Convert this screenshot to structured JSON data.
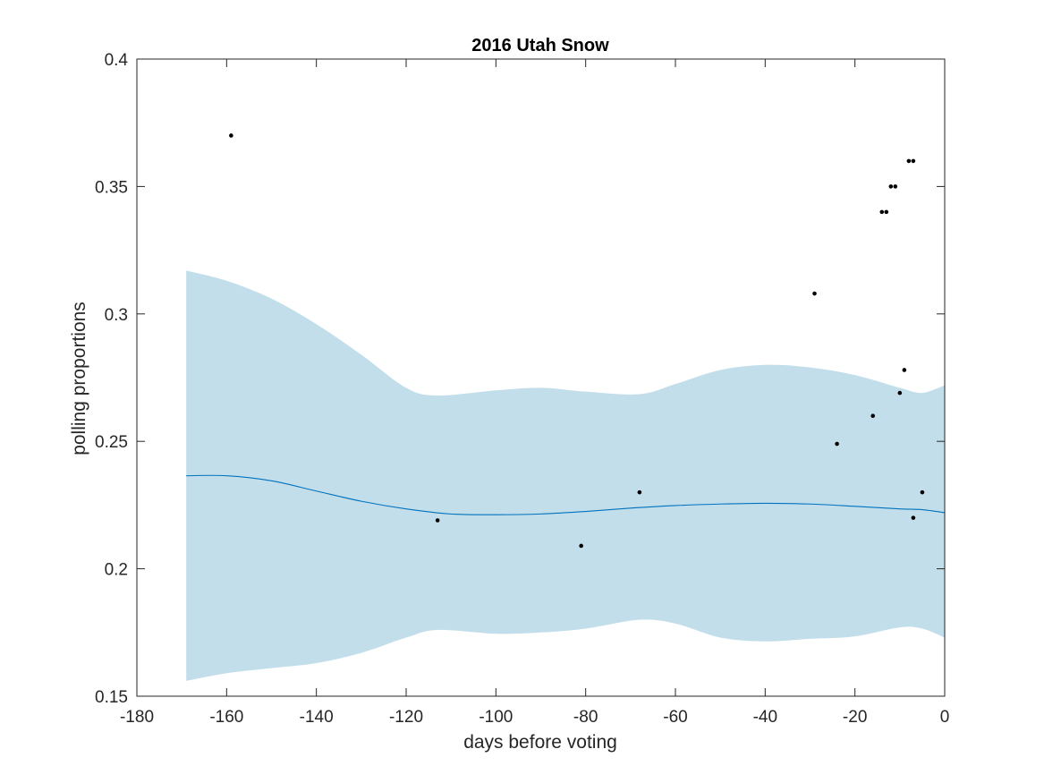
{
  "chart_data": {
    "type": "line",
    "title": "2016 Utah Snow",
    "xlabel": "days before voting",
    "ylabel": "polling proportions",
    "xlim": [
      -180,
      0
    ],
    "ylim": [
      0.15,
      0.4
    ],
    "xticks": [
      -180,
      -160,
      -140,
      -120,
      -100,
      -80,
      -60,
      -40,
      -20,
      0
    ],
    "yticks": [
      0.15,
      0.2,
      0.25,
      0.3,
      0.35,
      0.4
    ],
    "xtick_labels": [
      "-180",
      "-160",
      "-140",
      "-120",
      "-100",
      "-80",
      "-60",
      "-40",
      "-20",
      "0"
    ],
    "ytick_labels": [
      "0.15",
      "0.2",
      "0.25",
      "0.3",
      "0.35",
      "0.4"
    ],
    "grid": false,
    "colors": {
      "band": "#c2deeb",
      "line": "#0072bd",
      "points": "#000000",
      "axes": "#262626"
    },
    "band": {
      "x": [
        -169,
        -160,
        -150,
        -140,
        -130,
        -120,
        -113,
        -100,
        -90,
        -80,
        -68,
        -60,
        -50,
        -40,
        -30,
        -20,
        -10,
        -5,
        0
      ],
      "upper": [
        0.317,
        0.313,
        0.306,
        0.296,
        0.284,
        0.271,
        0.268,
        0.27,
        0.271,
        0.2695,
        0.2685,
        0.2725,
        0.278,
        0.28,
        0.279,
        0.276,
        0.271,
        0.269,
        0.272
      ],
      "lower": [
        0.156,
        0.159,
        0.161,
        0.163,
        0.167,
        0.173,
        0.176,
        0.1745,
        0.175,
        0.1765,
        0.18,
        0.1785,
        0.173,
        0.1715,
        0.1725,
        0.1735,
        0.177,
        0.1765,
        0.173
      ]
    },
    "mean_line": {
      "x": [
        -169,
        -160,
        -150,
        -140,
        -130,
        -120,
        -110,
        -100,
        -90,
        -80,
        -70,
        -60,
        -50,
        -40,
        -30,
        -20,
        -10,
        -5,
        0
      ],
      "y": [
        0.2365,
        0.2365,
        0.2345,
        0.2305,
        0.2265,
        0.2235,
        0.2215,
        0.2212,
        0.2215,
        0.2225,
        0.2238,
        0.2248,
        0.2254,
        0.2257,
        0.2254,
        0.2245,
        0.2235,
        0.2232,
        0.222
      ]
    },
    "scatter": {
      "x": [
        -159,
        -113,
        -81,
        -68,
        -29,
        -24,
        -16,
        -14,
        -13,
        -12,
        -11,
        -10,
        -9,
        -8,
        -7,
        -7,
        -5
      ],
      "y": [
        0.37,
        0.219,
        0.209,
        0.23,
        0.308,
        0.249,
        0.26,
        0.34,
        0.34,
        0.35,
        0.35,
        0.269,
        0.278,
        0.36,
        0.36,
        0.22,
        0.23
      ]
    }
  }
}
